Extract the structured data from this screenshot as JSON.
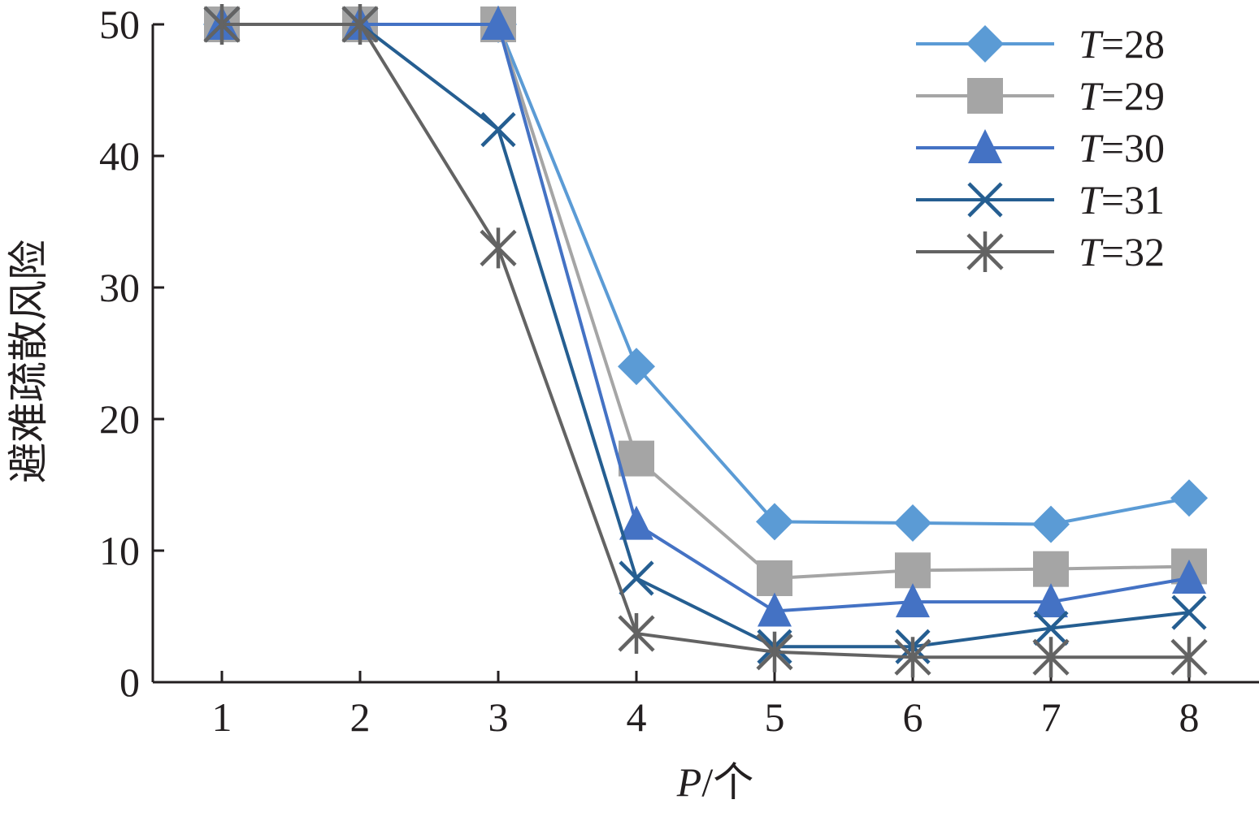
{
  "chart_data": {
    "type": "line",
    "x": [
      1,
      2,
      3,
      4,
      5,
      6,
      7,
      8
    ],
    "xlabel": {
      "var": "P",
      "unit": "/个"
    },
    "ylabel": "避难疏散风险",
    "ylim": [
      0,
      50
    ],
    "xlim": [
      0.5,
      8.5
    ],
    "yticks": [
      0,
      10,
      20,
      30,
      40,
      50
    ],
    "grid": false,
    "legend_position": "top-right",
    "series": [
      {
        "name_var": "T",
        "name_value": "=28",
        "color": "#5b9bd5",
        "marker": "diamond",
        "values": [
          50,
          50,
          50,
          24,
          12.2,
          12.1,
          12.0,
          14.0
        ]
      },
      {
        "name_var": "T",
        "name_value": "=29",
        "color": "#a5a5a5",
        "marker": "square",
        "values": [
          50,
          50,
          50,
          17,
          7.9,
          8.5,
          8.6,
          8.8
        ]
      },
      {
        "name_var": "T",
        "name_value": "=30",
        "color": "#4472c4",
        "marker": "triangle",
        "values": [
          50,
          50,
          50,
          12,
          5.4,
          6.1,
          6.1,
          7.9
        ]
      },
      {
        "name_var": "T",
        "name_value": "=31",
        "color": "#255e91",
        "marker": "x",
        "values": [
          50,
          50,
          42,
          7.9,
          2.7,
          2.7,
          4.1,
          5.3
        ]
      },
      {
        "name_var": "T",
        "name_value": "=32",
        "color": "#636363",
        "marker": "star",
        "values": [
          50,
          50,
          33,
          3.7,
          2.3,
          1.9,
          1.9,
          1.9
        ]
      }
    ]
  }
}
